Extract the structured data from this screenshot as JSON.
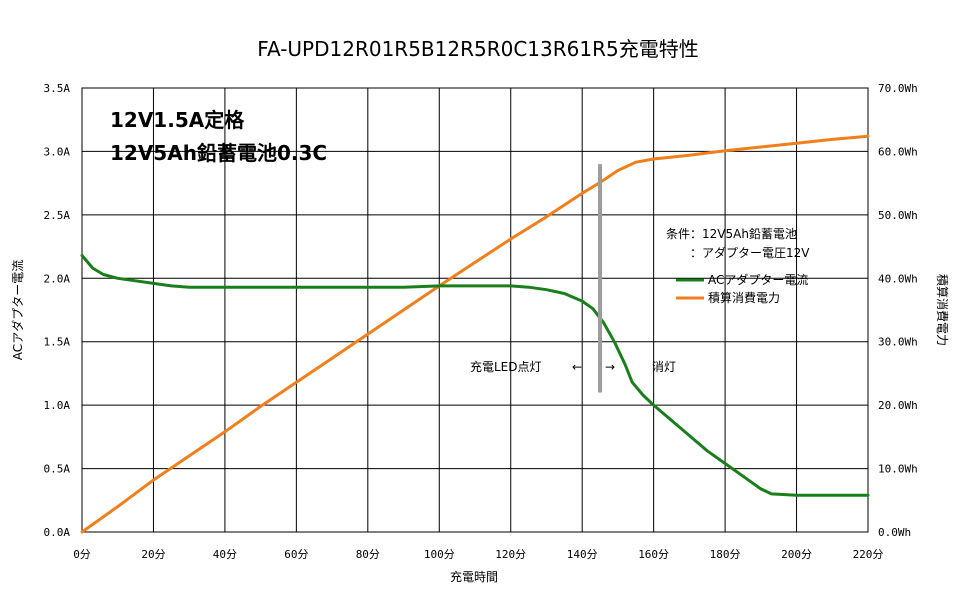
{
  "chart_data": {
    "type": "line",
    "title": "FA-UPD12R01R5B12R5R0C13R61R5充電特性",
    "xlabel": "充電時間",
    "ylabel_left": "ACアダプター電流",
    "ylabel_right": "積算消費電力",
    "x_ticks": [
      "0分",
      "20分",
      "40分",
      "60分",
      "80分",
      "100分",
      "120分",
      "140分",
      "160分",
      "180分",
      "200分",
      "220分"
    ],
    "y_left_ticks": [
      "0.0A",
      "0.5A",
      "1.0A",
      "1.5A",
      "2.0A",
      "2.5A",
      "3.0A",
      "3.5A"
    ],
    "y_right_ticks": [
      "0.0Wh",
      "10.0Wh",
      "20.0Wh",
      "30.0Wh",
      "40.0Wh",
      "50.0Wh",
      "60.0Wh",
      "70.0Wh"
    ],
    "xlim": [
      0,
      220
    ],
    "ylim_left": [
      0,
      3.5
    ],
    "ylim_right": [
      0,
      70
    ],
    "grid": true,
    "colors": {
      "current": "#1a7f1a",
      "energy": "#f07f1c",
      "marker": "#9c9c9c"
    },
    "series": [
      {
        "name": "ACアダプター電流",
        "axis": "left",
        "x": [
          0,
          3,
          6,
          10,
          15,
          20,
          25,
          30,
          40,
          60,
          80,
          90,
          100,
          110,
          120,
          125,
          130,
          135,
          140,
          143,
          146,
          149,
          152,
          154,
          157,
          160,
          165,
          170,
          175,
          180,
          185,
          190,
          193,
          200,
          210,
          220
        ],
        "values": [
          2.18,
          2.08,
          2.03,
          2.0,
          1.98,
          1.96,
          1.94,
          1.93,
          1.93,
          1.93,
          1.93,
          1.93,
          1.94,
          1.94,
          1.94,
          1.93,
          1.91,
          1.88,
          1.82,
          1.76,
          1.65,
          1.5,
          1.32,
          1.18,
          1.08,
          1.0,
          0.88,
          0.76,
          0.64,
          0.54,
          0.44,
          0.34,
          0.3,
          0.29,
          0.29,
          0.29
        ]
      },
      {
        "name": "積算消費電力",
        "axis": "right",
        "x": [
          0,
          10,
          20,
          30,
          40,
          50,
          60,
          70,
          80,
          90,
          100,
          110,
          120,
          130,
          140,
          145,
          150,
          155,
          160,
          170,
          180,
          190,
          200,
          210,
          220
        ],
        "values": [
          0,
          4,
          8.2,
          12,
          15.8,
          19.8,
          23.6,
          27.4,
          31.2,
          35,
          38.8,
          42.5,
          46.2,
          49.7,
          53.4,
          55.1,
          57,
          58.3,
          58.8,
          59.4,
          60.1,
          60.7,
          61.3,
          61.9,
          62.4
        ]
      }
    ],
    "annotations": {
      "spec_line1": "12V1.5A定格",
      "spec_line2": "12V5Ah鉛蓄電池0.3C",
      "conditions_line1": "条件：12V5Ah鉛蓄電池",
      "conditions_line2": "：アダプター電圧12V",
      "led_on": "充電LED点灯",
      "arrow_left": "←",
      "arrow_right": "→",
      "led_off": "消灯",
      "marker_x": 145,
      "marker_range": [
        1.1,
        2.9
      ]
    }
  }
}
